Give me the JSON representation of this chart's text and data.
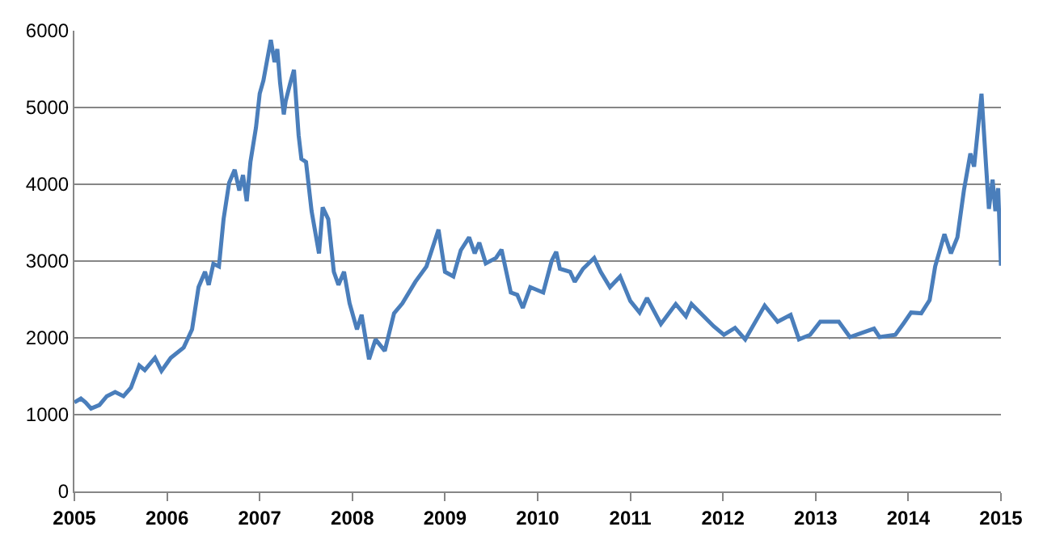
{
  "chart_data": {
    "type": "line",
    "xlim": [
      2005,
      2015
    ],
    "xticks": [
      2005,
      2006,
      2007,
      2008,
      2009,
      2010,
      2011,
      2012,
      2013,
      2014,
      2015
    ],
    "ylim": [
      0,
      6000
    ],
    "yticks": [
      0,
      1000,
      2000,
      3000,
      4000,
      5000,
      6000
    ],
    "grid": "y",
    "series": [
      {
        "color": "#4a7ebb",
        "x": [
          2005.0,
          2005.07,
          2005.12,
          2005.18,
          2005.27,
          2005.35,
          2005.44,
          2005.53,
          2005.61,
          2005.7,
          2005.76,
          2005.87,
          2005.94,
          2006.04,
          2006.18,
          2006.27,
          2006.34,
          2006.41,
          2006.45,
          2006.5,
          2006.56,
          2006.61,
          2006.67,
          2006.73,
          2006.78,
          2006.82,
          2006.86,
          2006.9,
          2006.96,
          2007.0,
          2007.04,
          2007.12,
          2007.16,
          2007.19,
          2007.22,
          2007.26,
          2007.28,
          2007.33,
          2007.37,
          2007.42,
          2007.45,
          2007.5,
          2007.56,
          2007.64,
          2007.68,
          2007.74,
          2007.8,
          2007.85,
          2007.91,
          2007.97,
          2008.05,
          2008.1,
          2008.18,
          2008.25,
          2008.35,
          2008.45,
          2008.54,
          2008.68,
          2008.8,
          2008.93,
          2009.0,
          2009.09,
          2009.17,
          2009.26,
          2009.32,
          2009.37,
          2009.44,
          2009.55,
          2009.61,
          2009.71,
          2009.78,
          2009.84,
          2009.92,
          2010.06,
          2010.15,
          2010.2,
          2010.24,
          2010.35,
          2010.4,
          2010.49,
          2010.61,
          2010.68,
          2010.78,
          2010.89,
          2011.0,
          2011.1,
          2011.18,
          2011.33,
          2011.49,
          2011.6,
          2011.66,
          2011.9,
          2012.01,
          2012.13,
          2012.24,
          2012.45,
          2012.59,
          2012.73,
          2012.82,
          2012.94,
          2013.05,
          2013.25,
          2013.37,
          2013.63,
          2013.69,
          2013.86,
          2013.95,
          2014.03,
          2014.14,
          2014.23,
          2014.29,
          2014.39,
          2014.46,
          2014.53,
          2014.6,
          2014.67,
          2014.71,
          2014.75,
          2014.79,
          2014.84,
          2014.87,
          2014.91,
          2014.94,
          2014.97,
          2015.0
        ],
        "values": [
          1160,
          1210,
          1160,
          1080,
          1125,
          1240,
          1295,
          1240,
          1350,
          1640,
          1580,
          1740,
          1570,
          1740,
          1875,
          2110,
          2660,
          2860,
          2690,
          2965,
          2930,
          3545,
          4020,
          4190,
          3920,
          4120,
          3780,
          4290,
          4740,
          5180,
          5350,
          5880,
          5590,
          5760,
          5320,
          4910,
          5080,
          5320,
          5490,
          4640,
          4330,
          4290,
          3650,
          3100,
          3700,
          3545,
          2860,
          2690,
          2860,
          2450,
          2110,
          2300,
          1720,
          1980,
          1830,
          2320,
          2450,
          2730,
          2930,
          3410,
          2860,
          2800,
          3140,
          3310,
          3100,
          3240,
          2970,
          3040,
          3150,
          2590,
          2560,
          2390,
          2660,
          2590,
          3000,
          3120,
          2900,
          2860,
          2730,
          2900,
          3040,
          2860,
          2660,
          2800,
          2480,
          2330,
          2520,
          2180,
          2440,
          2280,
          2440,
          2150,
          2040,
          2130,
          1980,
          2420,
          2210,
          2300,
          1980,
          2040,
          2210,
          2210,
          2010,
          2120,
          2010,
          2040,
          2190,
          2330,
          2320,
          2490,
          2930,
          3350,
          3100,
          3310,
          3920,
          4400,
          4230,
          4700,
          5180,
          4230,
          3680,
          4060,
          3650,
          3950,
          2940
        ]
      }
    ]
  }
}
